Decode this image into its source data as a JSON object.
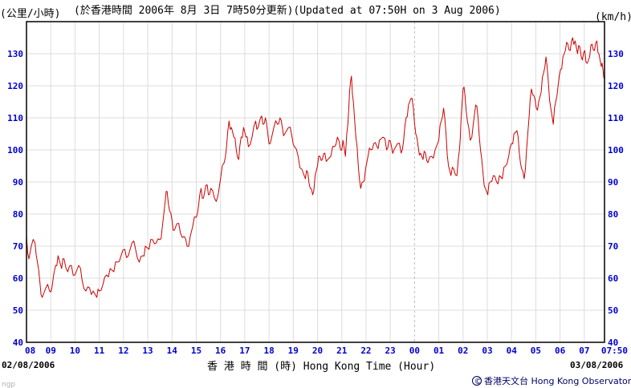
{
  "header": {
    "unit_left": "(公里/小時)",
    "update_text": "(於香港時間 2006年 8月 3日 7時50分更新)(Updated at 07:50H on 3 Aug 2006)",
    "unit_right": "(km/h)"
  },
  "footer": {
    "start_date": "02/08/2006",
    "end_date": "03/08/2006",
    "axis_title": "香 港 時 間 (時) Hong Kong Time (Hour)",
    "copyright_symbol": "©",
    "copyright": "香港天文台 Hong Kong Observatory",
    "watermark": "ngp"
  },
  "colors": {
    "line": "#cc0000",
    "tick": "#0000cc",
    "grid": "#dcdcdc",
    "day_divider": "#bdbdbd"
  },
  "chart_data": {
    "type": "line",
    "title": "",
    "xlabel": "香 港 時 間 (時) Hong Kong Time (Hour)",
    "ylabel_left": "(公里/小時)",
    "ylabel_right": "(km/h)",
    "ylim": [
      40,
      140
    ],
    "yticks": [
      40,
      50,
      60,
      70,
      80,
      90,
      100,
      110,
      120,
      130
    ],
    "xlim_hours": [
      8,
      31.833
    ],
    "xtick_labels": [
      "08",
      "09",
      "10",
      "11",
      "12",
      "13",
      "14",
      "15",
      "16",
      "17",
      "18",
      "19",
      "20",
      "21",
      "22",
      "23",
      "00",
      "01",
      "02",
      "03",
      "04",
      "05",
      "06",
      "07",
      "07:50"
    ],
    "xtick_hours": [
      8,
      9,
      10,
      11,
      12,
      13,
      14,
      15,
      16,
      17,
      18,
      19,
      20,
      21,
      22,
      23,
      24,
      25,
      26,
      27,
      28,
      29,
      30,
      31,
      31.833
    ],
    "grid": true,
    "series": [
      {
        "points": [
          [
            8.0,
            73
          ],
          [
            8.1,
            66
          ],
          [
            8.2,
            70
          ],
          [
            8.35,
            71
          ],
          [
            8.45,
            65
          ],
          [
            8.55,
            59
          ],
          [
            8.65,
            54
          ],
          [
            8.8,
            57
          ],
          [
            8.95,
            56
          ],
          [
            9.05,
            57
          ],
          [
            9.2,
            64
          ],
          [
            9.3,
            67
          ],
          [
            9.45,
            63
          ],
          [
            9.55,
            66
          ],
          [
            9.7,
            62
          ],
          [
            9.85,
            64
          ],
          [
            10.0,
            61
          ],
          [
            10.15,
            64
          ],
          [
            10.3,
            59
          ],
          [
            10.45,
            56
          ],
          [
            10.6,
            57
          ],
          [
            10.75,
            56
          ],
          [
            10.9,
            54
          ],
          [
            11.0,
            56
          ],
          [
            11.15,
            58
          ],
          [
            11.3,
            61
          ],
          [
            11.45,
            63
          ],
          [
            11.6,
            62
          ],
          [
            11.75,
            65
          ],
          [
            11.9,
            67
          ],
          [
            12.05,
            69
          ],
          [
            12.2,
            67
          ],
          [
            12.35,
            71
          ],
          [
            12.5,
            69
          ],
          [
            12.65,
            65
          ],
          [
            12.8,
            67
          ],
          [
            12.9,
            70
          ],
          [
            13.05,
            69
          ],
          [
            13.2,
            72
          ],
          [
            13.35,
            71
          ],
          [
            13.5,
            72
          ],
          [
            13.6,
            76
          ],
          [
            13.72,
            84
          ],
          [
            13.8,
            87
          ],
          [
            13.9,
            81
          ],
          [
            14.0,
            78
          ],
          [
            14.1,
            75
          ],
          [
            14.2,
            77
          ],
          [
            14.35,
            74
          ],
          [
            14.5,
            73
          ],
          [
            14.62,
            70
          ],
          [
            14.75,
            73
          ],
          [
            14.85,
            76
          ],
          [
            15.0,
            79
          ],
          [
            15.1,
            83
          ],
          [
            15.2,
            88
          ],
          [
            15.3,
            85
          ],
          [
            15.4,
            89
          ],
          [
            15.5,
            86
          ],
          [
            15.6,
            88
          ],
          [
            15.75,
            85
          ],
          [
            15.9,
            86
          ],
          [
            16.0,
            91
          ],
          [
            16.15,
            96
          ],
          [
            16.25,
            101
          ],
          [
            16.35,
            109
          ],
          [
            16.45,
            107
          ],
          [
            16.55,
            104
          ],
          [
            16.65,
            100
          ],
          [
            16.75,
            97
          ],
          [
            16.85,
            104
          ],
          [
            16.95,
            107
          ],
          [
            17.05,
            104
          ],
          [
            17.15,
            101
          ],
          [
            17.3,
            104
          ],
          [
            17.45,
            109
          ],
          [
            17.55,
            107
          ],
          [
            17.65,
            110
          ],
          [
            17.75,
            108
          ],
          [
            17.85,
            110
          ],
          [
            17.95,
            105
          ],
          [
            18.05,
            102
          ],
          [
            18.2,
            107
          ],
          [
            18.35,
            108
          ],
          [
            18.45,
            110
          ],
          [
            18.55,
            107
          ],
          [
            18.65,
            105
          ],
          [
            18.8,
            107
          ],
          [
            18.95,
            104
          ],
          [
            19.05,
            101
          ],
          [
            19.2,
            98
          ],
          [
            19.35,
            94
          ],
          [
            19.5,
            91
          ],
          [
            19.6,
            93
          ],
          [
            19.7,
            88
          ],
          [
            19.8,
            86
          ],
          [
            19.9,
            92
          ],
          [
            20.0,
            95
          ],
          [
            20.1,
            98
          ],
          [
            20.2,
            97
          ],
          [
            20.3,
            99
          ],
          [
            20.42,
            97
          ],
          [
            20.55,
            98
          ],
          [
            20.7,
            101
          ],
          [
            20.82,
            104
          ],
          [
            20.95,
            100
          ],
          [
            21.05,
            103
          ],
          [
            21.15,
            98
          ],
          [
            21.25,
            108
          ],
          [
            21.32,
            118
          ],
          [
            21.4,
            123
          ],
          [
            21.48,
            115
          ],
          [
            21.58,
            104
          ],
          [
            21.68,
            95
          ],
          [
            21.78,
            88
          ],
          [
            21.88,
            90
          ],
          [
            21.98,
            94
          ],
          [
            22.08,
            98
          ],
          [
            22.2,
            100
          ],
          [
            22.32,
            102
          ],
          [
            22.45,
            101
          ],
          [
            22.55,
            103
          ],
          [
            22.7,
            104
          ],
          [
            22.85,
            100
          ],
          [
            22.95,
            103
          ],
          [
            23.05,
            101
          ],
          [
            23.15,
            100
          ],
          [
            23.3,
            102
          ],
          [
            23.45,
            99
          ],
          [
            23.55,
            103
          ],
          [
            23.65,
            110
          ],
          [
            23.75,
            114
          ],
          [
            23.85,
            116
          ],
          [
            23.95,
            113
          ],
          [
            24.05,
            105
          ],
          [
            24.15,
            101
          ],
          [
            24.25,
            99
          ],
          [
            24.35,
            97
          ],
          [
            24.45,
            99
          ],
          [
            24.55,
            96
          ],
          [
            24.7,
            98
          ],
          [
            24.85,
            100
          ],
          [
            25.0,
            103
          ],
          [
            25.1,
            109
          ],
          [
            25.2,
            113
          ],
          [
            25.3,
            105
          ],
          [
            25.4,
            95
          ],
          [
            25.5,
            92
          ],
          [
            25.62,
            94
          ],
          [
            25.75,
            92
          ],
          [
            25.85,
            100
          ],
          [
            25.92,
            110
          ],
          [
            26.0,
            119
          ],
          [
            26.08,
            117
          ],
          [
            26.18,
            109
          ],
          [
            26.3,
            103
          ],
          [
            26.42,
            108
          ],
          [
            26.52,
            114
          ],
          [
            26.62,
            110
          ],
          [
            26.72,
            100
          ],
          [
            26.82,
            93
          ],
          [
            26.92,
            88
          ],
          [
            27.02,
            86
          ],
          [
            27.12,
            90
          ],
          [
            27.25,
            92
          ],
          [
            27.38,
            90
          ],
          [
            27.5,
            92
          ],
          [
            27.62,
            91
          ],
          [
            27.75,
            95
          ],
          [
            27.88,
            98
          ],
          [
            28.0,
            102
          ],
          [
            28.1,
            105
          ],
          [
            28.22,
            106
          ],
          [
            28.32,
            99
          ],
          [
            28.42,
            94
          ],
          [
            28.52,
            91
          ],
          [
            28.62,
            100
          ],
          [
            28.72,
            110
          ],
          [
            28.82,
            119
          ],
          [
            28.92,
            117
          ],
          [
            29.02,
            113
          ],
          [
            29.12,
            115
          ],
          [
            29.22,
            118
          ],
          [
            29.32,
            124
          ],
          [
            29.42,
            129
          ],
          [
            29.52,
            121
          ],
          [
            29.62,
            113
          ],
          [
            29.72,
            108
          ],
          [
            29.82,
            115
          ],
          [
            29.92,
            120
          ],
          [
            30.02,
            125
          ],
          [
            30.12,
            129
          ],
          [
            30.22,
            131
          ],
          [
            30.32,
            133
          ],
          [
            30.42,
            131
          ],
          [
            30.52,
            135
          ],
          [
            30.62,
            134
          ],
          [
            30.72,
            130
          ],
          [
            30.82,
            132
          ],
          [
            30.92,
            128
          ],
          [
            31.02,
            131
          ],
          [
            31.12,
            127
          ],
          [
            31.22,
            129
          ],
          [
            31.32,
            133
          ],
          [
            31.42,
            131
          ],
          [
            31.52,
            134
          ],
          [
            31.6,
            130
          ],
          [
            31.7,
            126
          ],
          [
            31.77,
            125
          ],
          [
            31.833,
            122
          ]
        ]
      }
    ]
  }
}
